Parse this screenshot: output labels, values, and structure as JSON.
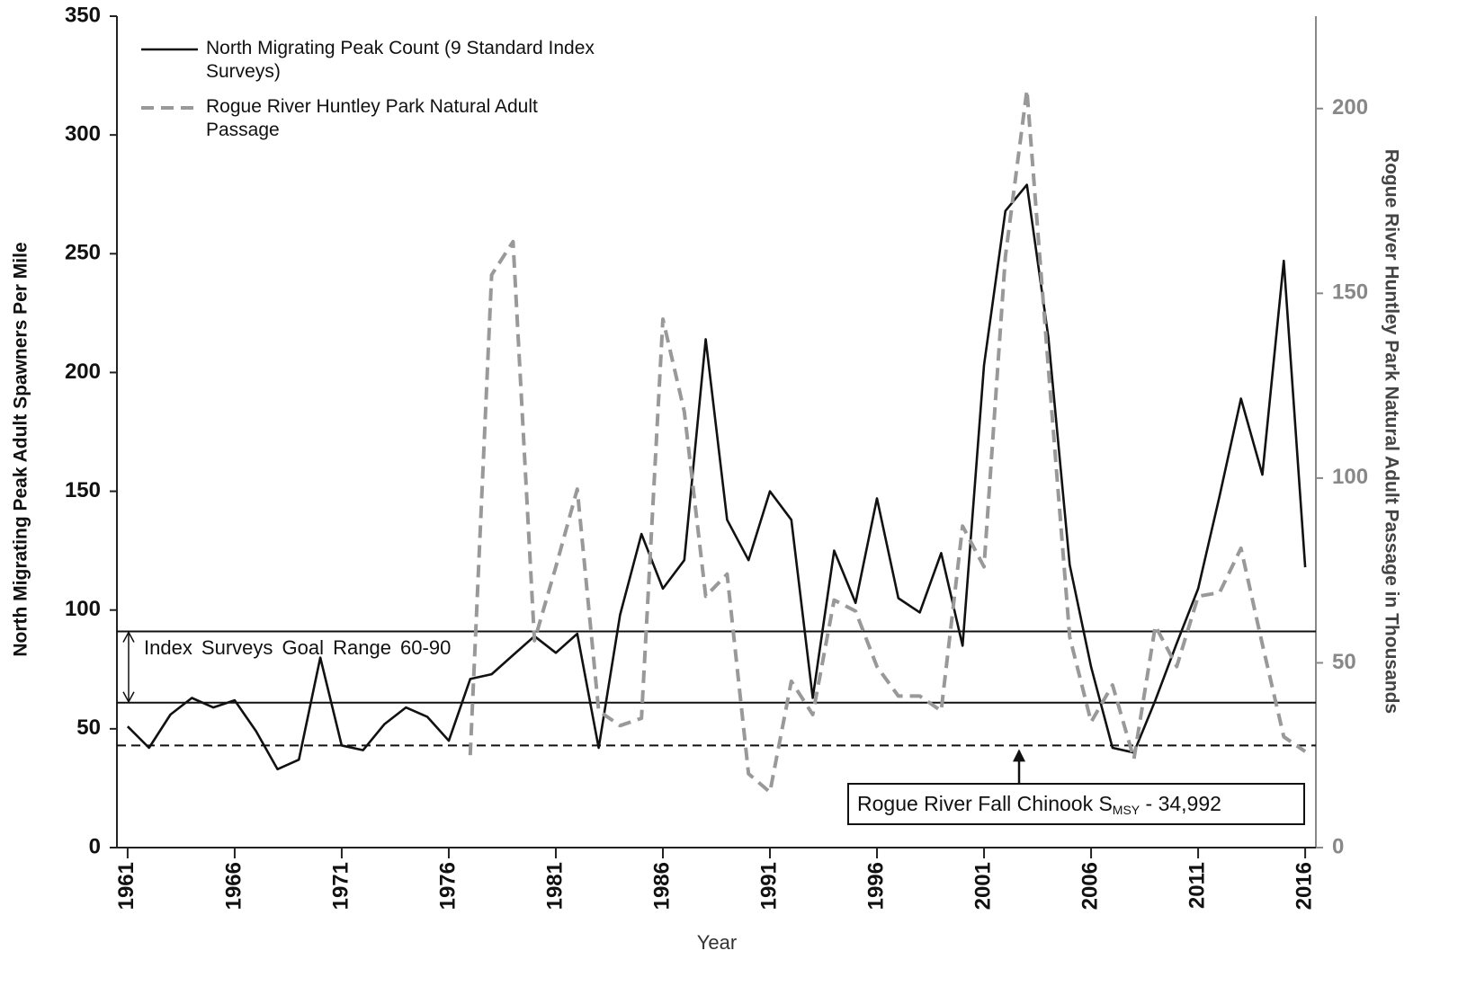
{
  "chart_data": {
    "type": "line",
    "x_label": "Year",
    "y_label": "North Migrating Peak Adult Spawners Per Mile",
    "y2_label": "Rogue River Huntley Park Natural Adult Passage in Thousands",
    "x": [
      1961,
      1962,
      1963,
      1964,
      1965,
      1966,
      1967,
      1968,
      1969,
      1970,
      1971,
      1972,
      1973,
      1974,
      1975,
      1976,
      1977,
      1978,
      1979,
      1980,
      1981,
      1982,
      1983,
      1984,
      1985,
      1986,
      1987,
      1988,
      1989,
      1990,
      1991,
      1992,
      1993,
      1994,
      1995,
      1996,
      1997,
      1998,
      1999,
      2000,
      2001,
      2002,
      2003,
      2004,
      2005,
      2006,
      2007,
      2008,
      2009,
      2010,
      2011,
      2012,
      2013,
      2014,
      2015,
      2016
    ],
    "series": [
      {
        "name": "North Migrating Peak Count (9 Standard Index Surveys)",
        "color": "#111111",
        "style": "solid",
        "values": [
          51,
          42,
          56,
          63,
          59,
          62,
          49,
          33,
          37,
          80,
          43,
          41,
          52,
          59,
          55,
          45,
          71,
          73,
          81,
          89,
          82,
          90,
          42,
          98,
          132,
          109,
          121,
          214,
          138,
          121,
          150,
          138,
          63,
          125,
          103,
          147,
          105,
          99,
          124,
          85,
          203,
          268,
          279,
          215,
          119,
          76,
          42,
          40,
          62,
          86,
          109,
          148,
          189,
          157,
          247,
          118
        ]
      },
      {
        "name": "Rogue River Huntley Park Natural Adult Passage",
        "color": "#999999",
        "style": "dashed",
        "axis": "y2",
        "values": [
          null,
          null,
          null,
          null,
          null,
          null,
          null,
          null,
          null,
          null,
          null,
          null,
          null,
          null,
          null,
          null,
          25,
          155,
          164,
          56,
          76,
          97,
          37,
          33,
          35,
          143,
          118,
          68,
          74,
          20,
          15,
          45,
          36,
          67,
          64,
          49,
          41,
          41,
          37,
          87,
          76,
          160,
          205,
          130,
          57,
          34,
          44,
          24,
          60,
          49,
          68,
          69,
          81,
          55,
          30,
          26
        ]
      }
    ],
    "xlim": [
      1960.5,
      2016.5
    ],
    "xticks": [
      1961,
      1966,
      1971,
      1976,
      1981,
      1986,
      1991,
      1996,
      2001,
      2006,
      2011,
      2016
    ],
    "ylim": [
      0,
      350
    ],
    "yticks": [
      0,
      50,
      100,
      150,
      200,
      250,
      300,
      350
    ],
    "y2lim": [
      0,
      225
    ],
    "y2ticks": [
      0,
      50,
      100,
      150,
      200
    ],
    "legend": "top-left",
    "reference_lines": [
      {
        "value": 91,
        "style": "solid"
      },
      {
        "value": 61,
        "style": "solid"
      },
      {
        "value": 43,
        "style": "dashed"
      }
    ],
    "annotations": [
      {
        "text": "Index Surveys Goal Range 60-90"
      },
      {
        "text_parts": [
          "Rogue River Fall Chinook S",
          "MSY",
          " - 34,992"
        ]
      }
    ]
  }
}
